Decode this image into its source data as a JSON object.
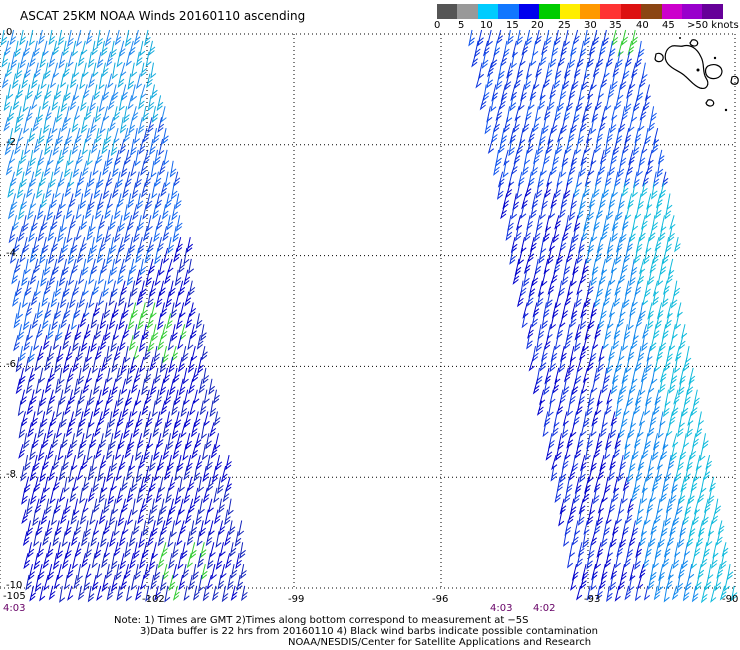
{
  "title": "ASCAT 25KM NOAA Winds 20160110 ascending",
  "scale": {
    "colors": [
      "#555555",
      "#999999",
      "#00ccff",
      "#1177ff",
      "#0000ee",
      "#00cc00",
      "#ffee00",
      "#ff9900",
      "#ff3333",
      "#dd1111",
      "#8b4513",
      "#cc00cc",
      "#9900cc",
      "#660099"
    ],
    "labels": [
      "0",
      "5",
      "10",
      "15",
      "20",
      "25",
      "30",
      "35",
      "40",
      "45",
      ">50 knots"
    ]
  },
  "map": {
    "lon_range": [
      -105,
      -90
    ],
    "lat_range": [
      -10,
      0
    ],
    "lon_ticks": [
      "-105",
      "-102",
      "-99",
      "-96",
      "-93",
      "-90"
    ],
    "lat_ticks": [
      "0",
      "-2",
      "-4",
      "-6",
      "-8",
      "-10"
    ],
    "times": [
      "4:03",
      "4:03",
      "4:02"
    ],
    "swaths": [
      {
        "name": "left-swath",
        "dominant_speed_knots": "10-20",
        "direction": "southeasterly"
      },
      {
        "name": "right-swath",
        "dominant_speed_knots": "10-20",
        "direction": "southeasterly"
      }
    ],
    "land": "Galapagos Islands"
  },
  "notes": [
    "Note: 1) Times are GMT 2)Times along bottom correspond to measurement at −5S",
    "3)Data buffer is 22 hrs from 20160110 4) Black wind barbs indicate possible contamination",
    "NOAA/NESDIS/Center for Satellite Applications and Research"
  ]
}
